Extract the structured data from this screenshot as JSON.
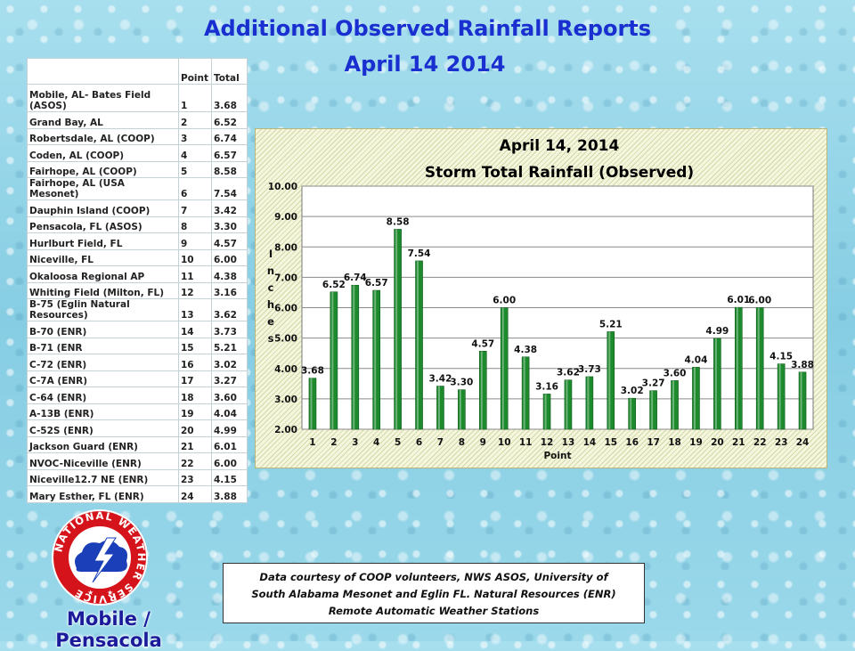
{
  "header": {
    "title": "Additional Observed Rainfall Reports",
    "date": "April 14 2014"
  },
  "table": {
    "columns": [
      "",
      "Point",
      "Total"
    ],
    "rows": [
      {
        "name": "Mobile, AL- Bates Field (ASOS)",
        "point": "1",
        "total": "3.68"
      },
      {
        "name": "Grand Bay, AL",
        "point": "2",
        "total": "6.52"
      },
      {
        "name": "Robertsdale, AL (COOP)",
        "point": "3",
        "total": "6.74"
      },
      {
        "name": "Coden, AL (COOP)",
        "point": "4",
        "total": "6.57"
      },
      {
        "name": "Fairhope, AL (COOP)",
        "point": "5",
        "total": "8.58"
      },
      {
        "name": "Fairhope, AL (USA Mesonet)",
        "point": "6",
        "total": "7.54"
      },
      {
        "name": "Dauphin Island (COOP)",
        "point": "7",
        "total": "3.42"
      },
      {
        "name": "Pensacola, FL (ASOS)",
        "point": "8",
        "total": "3.30"
      },
      {
        "name": "Hurlburt Field, FL",
        "point": "9",
        "total": "4.57"
      },
      {
        "name": "Niceville, FL",
        "point": "10",
        "total": "6.00"
      },
      {
        "name": "Okaloosa Regional AP",
        "point": "11",
        "total": "4.38"
      },
      {
        "name": "Whiting Field (Milton, FL)",
        "point": "12",
        "total": "3.16"
      },
      {
        "name": "B-75 (Eglin Natural Resources)",
        "point": "13",
        "total": "3.62"
      },
      {
        "name": "B-70 (ENR)",
        "point": "14",
        "total": "3.73"
      },
      {
        "name": "B-71 (ENR",
        "point": "15",
        "total": "5.21"
      },
      {
        "name": "C-72 (ENR)",
        "point": "16",
        "total": "3.02"
      },
      {
        "name": "C-7A (ENR)",
        "point": "17",
        "total": "3.27"
      },
      {
        "name": "C-64 (ENR)",
        "point": "18",
        "total": "3.60"
      },
      {
        "name": "A-13B (ENR)",
        "point": "19",
        "total": "4.04"
      },
      {
        "name": "C-52S (ENR)",
        "point": "20",
        "total": "4.99"
      },
      {
        "name": "Jackson Guard (ENR)",
        "point": "21",
        "total": "6.01"
      },
      {
        "name": "NVOC-Niceville (ENR)",
        "point": "22",
        "total": "6.00"
      },
      {
        "name": "Niceville12.7 NE (ENR)",
        "point": "23",
        "total": "4.15"
      },
      {
        "name": "Mary Esther, FL (ENR)",
        "point": "24",
        "total": "3.88"
      }
    ]
  },
  "chart_data": {
    "type": "bar",
    "title": "April 14, 2014",
    "subtitle": "Storm Total Rainfall (Observed)",
    "xlabel": "Point",
    "ylabel": "Inches",
    "ylim": [
      2.0,
      10.0
    ],
    "yticks": [
      "2.00",
      "3.00",
      "4.00",
      "5.00",
      "6.00",
      "7.00",
      "8.00",
      "9.00",
      "10.00"
    ],
    "categories": [
      "1",
      "2",
      "3",
      "4",
      "5",
      "6",
      "7",
      "8",
      "9",
      "10",
      "11",
      "12",
      "13",
      "14",
      "15",
      "16",
      "17",
      "18",
      "19",
      "20",
      "21",
      "22",
      "23",
      "24"
    ],
    "values": [
      3.68,
      6.52,
      6.74,
      6.57,
      8.58,
      7.54,
      3.42,
      3.3,
      4.57,
      6.0,
      4.38,
      3.16,
      3.62,
      3.73,
      5.21,
      3.02,
      3.27,
      3.6,
      4.04,
      4.99,
      6.01,
      6.0,
      4.15,
      3.88
    ],
    "data_labels": [
      "3.68",
      "6.52",
      "6.74",
      "6.57",
      "8.58",
      "7.54",
      "3.42",
      "3.30",
      "4.57",
      "6.00",
      "4.38",
      "3.16",
      "3.62",
      "3.73",
      "5.21",
      "3.02",
      "3.27",
      "3.60",
      "4.04",
      "4.99",
      "6.01",
      "6.00",
      "4.15",
      "3.88"
    ],
    "grid": true,
    "legend": "none",
    "bar_color": "#1e8a2e"
  },
  "credit": {
    "line1": "Data courtesy of COOP volunteers, NWS ASOS, University of",
    "line2": "South Alabama Mesonet and  Eglin FL. Natural Resources (ENR)",
    "line3": "Remote Automatic Weather Stations"
  },
  "logo": {
    "text": "NATIONAL WEATHER SERVICE"
  },
  "office": {
    "label": "Mobile / Pensacola"
  },
  "colors": {
    "title": "#1a2fd0",
    "bar": "#1e8a2e",
    "office": "#1a1a9a"
  }
}
